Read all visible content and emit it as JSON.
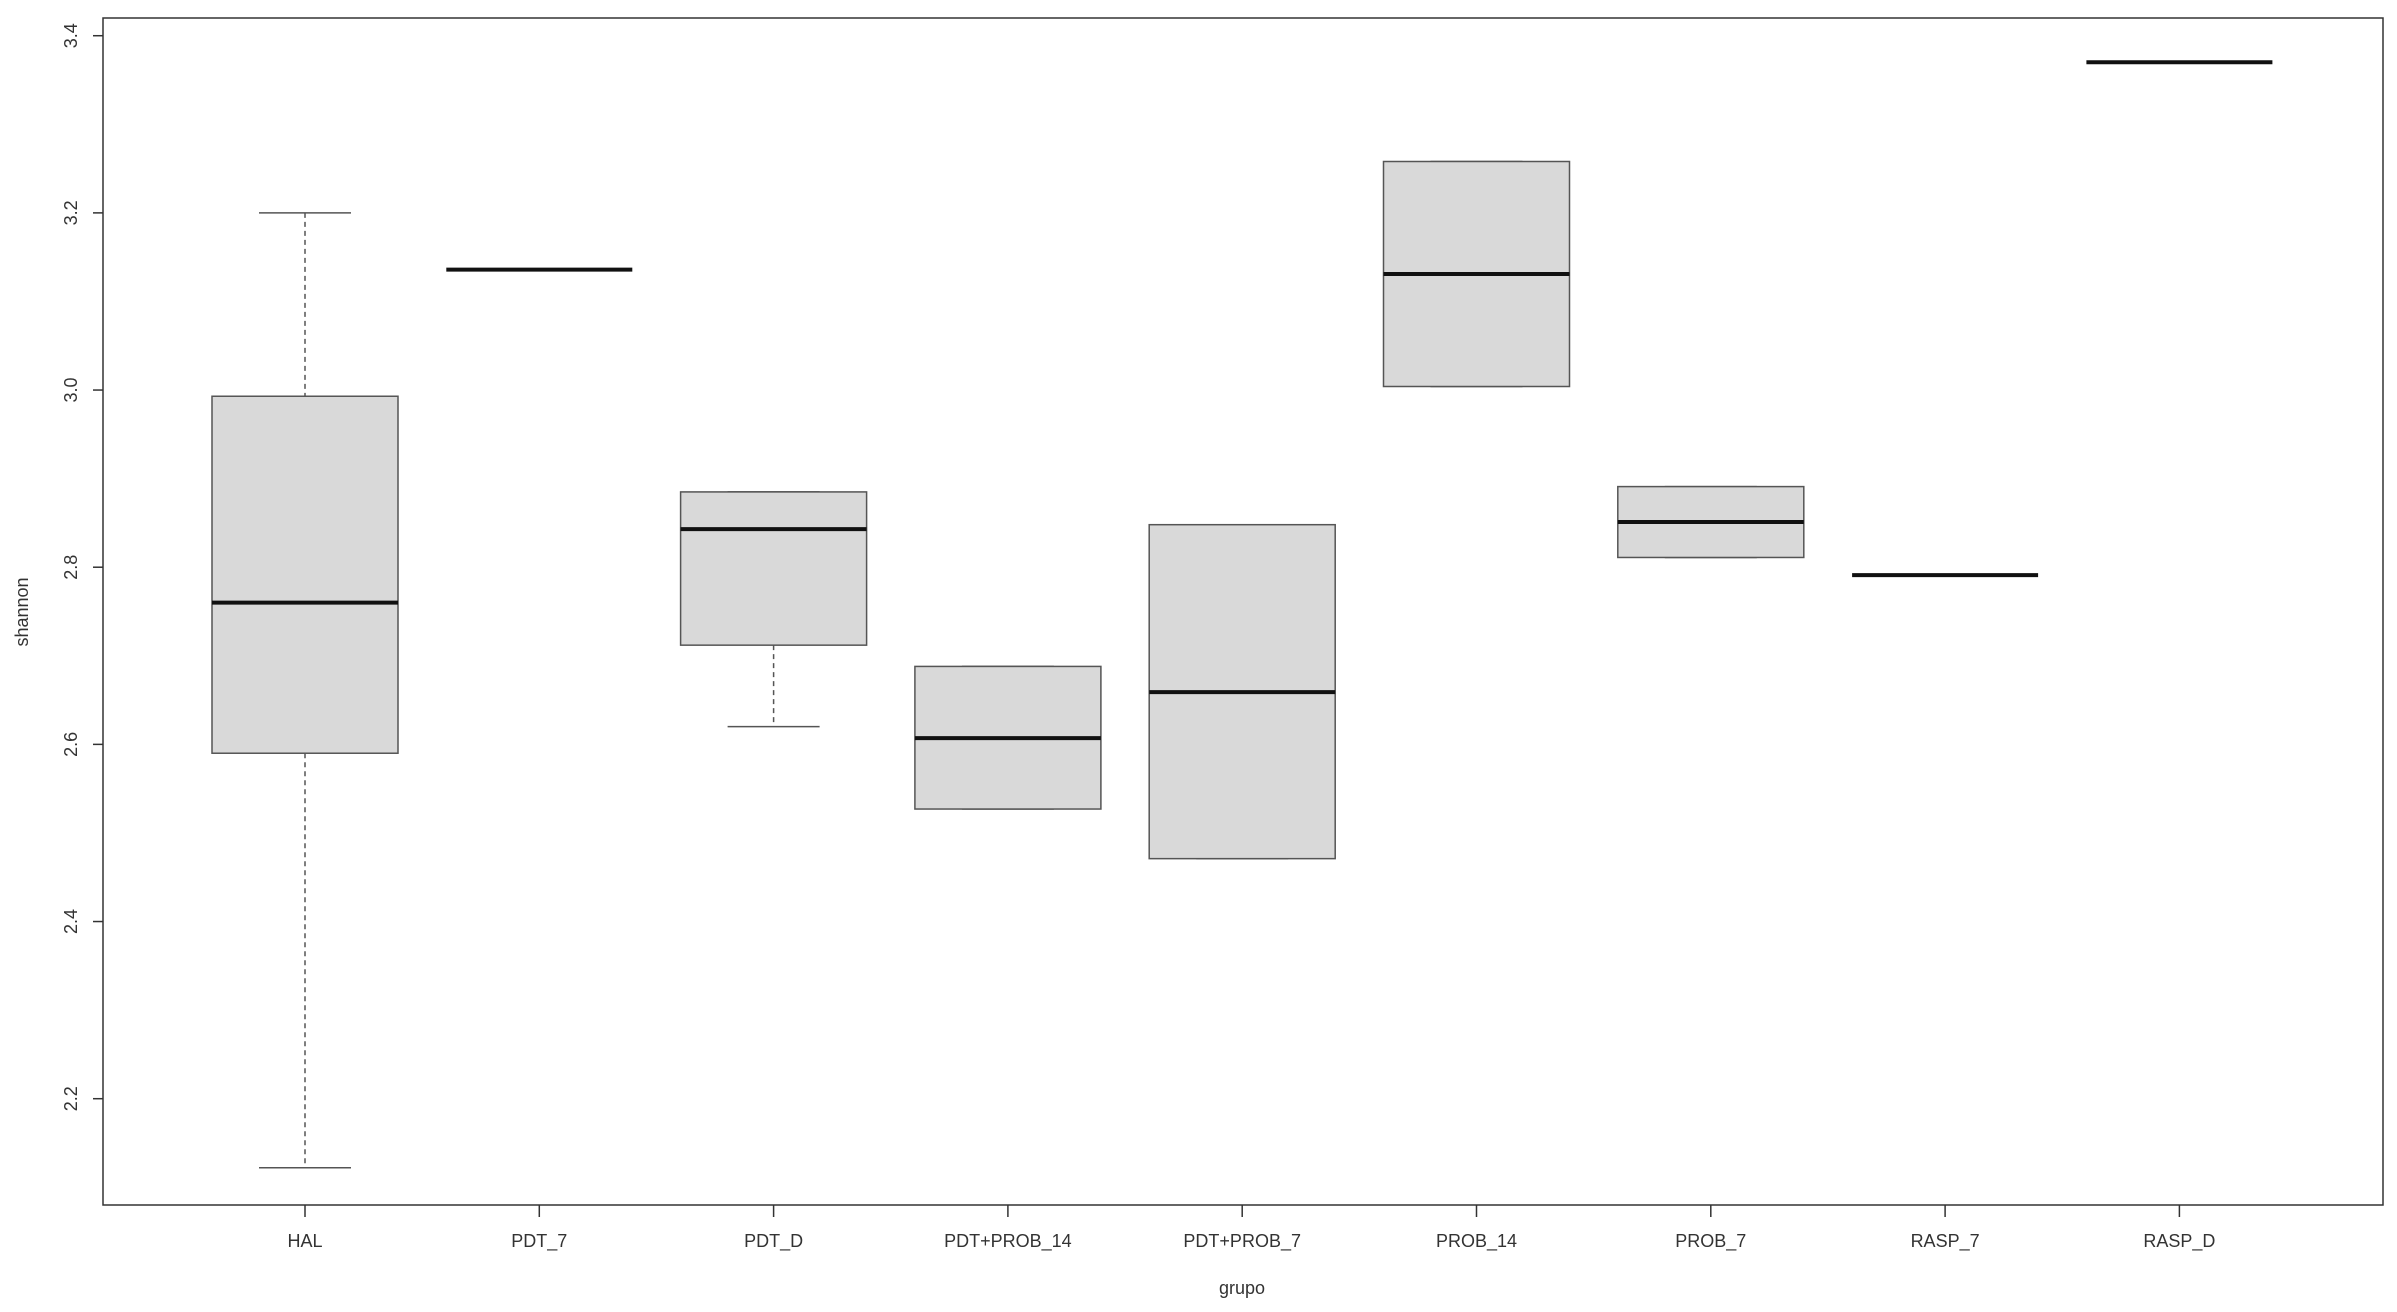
{
  "chart_data": {
    "type": "boxplot",
    "xlabel": "grupo",
    "ylabel": "shannon",
    "ylim": [
      2.08,
      3.42
    ],
    "yticks": [
      "2.2",
      "2.4",
      "2.6",
      "2.8",
      "3.0",
      "3.2",
      "3.4"
    ],
    "ytick_values": [
      2.2,
      2.4,
      2.6,
      2.8,
      3.0,
      3.2,
      3.4
    ],
    "categories": [
      "HAL",
      "PDT_7",
      "PDT_D",
      "PDT+PROB_14",
      "PDT+PROB_7",
      "PROB_14",
      "PROB_7",
      "RASP_7",
      "RASP_D"
    ],
    "boxes": [
      {
        "name": "HAL",
        "whisker_low": 2.122,
        "q1": 2.59,
        "median": 2.76,
        "q3": 2.993,
        "whisker_high": 3.2
      },
      {
        "name": "PDT_7",
        "whisker_low": 3.136,
        "q1": 3.136,
        "median": 3.136,
        "q3": 3.136,
        "whisker_high": 3.136
      },
      {
        "name": "PDT_D",
        "whisker_low": 2.62,
        "q1": 2.712,
        "median": 2.843,
        "q3": 2.885,
        "whisker_high": 2.885
      },
      {
        "name": "PDT+PROB_14",
        "whisker_low": 2.527,
        "q1": 2.527,
        "median": 2.607,
        "q3": 2.688,
        "whisker_high": 2.688
      },
      {
        "name": "PDT+PROB_7",
        "whisker_low": 2.471,
        "q1": 2.471,
        "median": 2.659,
        "q3": 2.848,
        "whisker_high": 2.848
      },
      {
        "name": "PROB_14",
        "whisker_low": 3.004,
        "q1": 3.004,
        "median": 3.131,
        "q3": 3.258,
        "whisker_high": 3.258
      },
      {
        "name": "PROB_7",
        "whisker_low": 2.811,
        "q1": 2.811,
        "median": 2.851,
        "q3": 2.891,
        "whisker_high": 2.891
      },
      {
        "name": "RASP_7",
        "whisker_low": 2.791,
        "q1": 2.791,
        "median": 2.791,
        "q3": 2.791,
        "whisker_high": 2.791
      },
      {
        "name": "RASP_D",
        "whisker_low": 3.37,
        "q1": 3.37,
        "median": 3.37,
        "q3": 3.37,
        "whisker_high": 3.37
      }
    ],
    "colors": {
      "box_fill": "#d9d9d9",
      "box_stroke": "#555555",
      "median": "#111111",
      "whisker": "#555555",
      "axis": "#333333"
    },
    "grid": false,
    "legend": "none"
  }
}
